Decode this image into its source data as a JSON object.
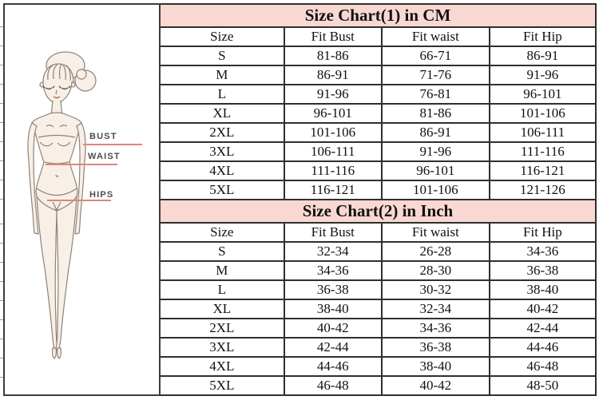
{
  "figure": {
    "labels": [
      {
        "id": "bust",
        "text": "BUST"
      },
      {
        "id": "waist",
        "text": "WAIST"
      },
      {
        "id": "hips",
        "text": "HIPS"
      }
    ]
  },
  "chart_data": [
    {
      "type": "table",
      "title": "Size Chart(1) in CM",
      "columns": [
        "Size",
        "Fit Bust",
        "Fit waist",
        "Fit Hip"
      ],
      "rows": [
        [
          "S",
          "81-86",
          "66-71",
          "86-91"
        ],
        [
          "M",
          "86-91",
          "71-76",
          "91-96"
        ],
        [
          "L",
          "91-96",
          "76-81",
          "96-101"
        ],
        [
          "XL",
          "96-101",
          "81-86",
          "101-106"
        ],
        [
          "2XL",
          "101-106",
          "86-91",
          "106-111"
        ],
        [
          "3XL",
          "106-111",
          "91-96",
          "111-116"
        ],
        [
          "4XL",
          "111-116",
          "96-101",
          "116-121"
        ],
        [
          "5XL",
          "116-121",
          "101-106",
          "121-126"
        ]
      ]
    },
    {
      "type": "table",
      "title": "Size Chart(2) in Inch",
      "columns": [
        "Size",
        "Fit Bust",
        "Fit waist",
        "Fit Hip"
      ],
      "rows": [
        [
          "S",
          "32-34",
          "26-28",
          "34-36"
        ],
        [
          "M",
          "34-36",
          "28-30",
          "36-38"
        ],
        [
          "L",
          "36-38",
          "30-32",
          "38-40"
        ],
        [
          "XL",
          "38-40",
          "32-34",
          "40-42"
        ],
        [
          "2XL",
          "40-42",
          "34-36",
          "42-44"
        ],
        [
          "3XL",
          "42-44",
          "36-38",
          "44-46"
        ],
        [
          "4XL",
          "44-46",
          "38-40",
          "46-48"
        ],
        [
          "5XL",
          "46-48",
          "40-42",
          "48-50"
        ]
      ]
    }
  ],
  "colors": {
    "title_band_pink": "#f9d8d3",
    "table_border": "#2f2f2f",
    "measure_line_red": "#e0857b"
  }
}
